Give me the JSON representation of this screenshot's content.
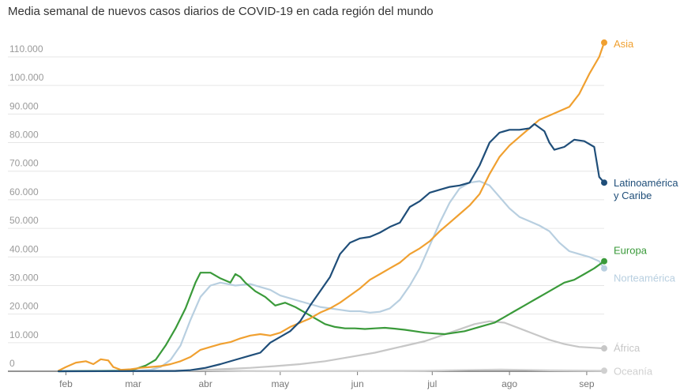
{
  "title": "Media semanal de nuevos casos diarios de COVID-19 en cada región del mundo",
  "chart_data": {
    "type": "line",
    "title": "Media semanal de nuevos casos diarios de COVID-19 en cada región del mundo",
    "xlabel": "",
    "ylabel": "",
    "x_unit": "day of year 2020",
    "xlim": [
      33,
      252
    ],
    "ylim": [
      0,
      115000
    ],
    "y_ticks": [
      0,
      10000,
      20000,
      30000,
      40000,
      50000,
      60000,
      70000,
      80000,
      90000,
      100000,
      110000
    ],
    "y_tick_labels": [
      "0",
      "10.000",
      "20.000",
      "30.000",
      "40.000",
      "50.000",
      "60.000",
      "70.000",
      "80.000",
      "90.000",
      "100.000",
      "110.000"
    ],
    "x_ticks": [
      {
        "label": "feb",
        "day": 36
      },
      {
        "label": "mar",
        "day": 63
      },
      {
        "label": "abr",
        "day": 92
      },
      {
        "label": "may",
        "day": 122
      },
      {
        "label": "jun",
        "day": 153
      },
      {
        "label": "jul",
        "day": 183
      },
      {
        "label": "ago",
        "day": 214
      },
      {
        "label": "sep",
        "day": 245
      }
    ],
    "grid": true,
    "legend": "end-of-line labels",
    "series": [
      {
        "name": "Asia",
        "color": "#f0a030",
        "end_label": [
          "Asia"
        ],
        "points": [
          [
            33,
            200
          ],
          [
            36,
            1500
          ],
          [
            40,
            3000
          ],
          [
            44,
            3500
          ],
          [
            47,
            2500
          ],
          [
            50,
            4200
          ],
          [
            53,
            3800
          ],
          [
            55,
            1500
          ],
          [
            58,
            500
          ],
          [
            62,
            700
          ],
          [
            66,
            1200
          ],
          [
            70,
            1500
          ],
          [
            74,
            1800
          ],
          [
            78,
            2500
          ],
          [
            82,
            3500
          ],
          [
            86,
            5000
          ],
          [
            90,
            7500
          ],
          [
            94,
            8500
          ],
          [
            98,
            9500
          ],
          [
            102,
            10200
          ],
          [
            106,
            11500
          ],
          [
            110,
            12500
          ],
          [
            114,
            13000
          ],
          [
            118,
            12500
          ],
          [
            122,
            13500
          ],
          [
            126,
            15500
          ],
          [
            130,
            17000
          ],
          [
            134,
            18500
          ],
          [
            138,
            20500
          ],
          [
            142,
            22000
          ],
          [
            146,
            24000
          ],
          [
            150,
            26500
          ],
          [
            154,
            29000
          ],
          [
            158,
            32000
          ],
          [
            162,
            34000
          ],
          [
            166,
            36000
          ],
          [
            170,
            38000
          ],
          [
            174,
            41000
          ],
          [
            178,
            43000
          ],
          [
            182,
            45500
          ],
          [
            186,
            49000
          ],
          [
            190,
            52000
          ],
          [
            194,
            55000
          ],
          [
            198,
            58000
          ],
          [
            202,
            62000
          ],
          [
            206,
            69000
          ],
          [
            210,
            75000
          ],
          [
            214,
            79000
          ],
          [
            218,
            82000
          ],
          [
            222,
            85000
          ],
          [
            226,
            88000
          ],
          [
            230,
            89500
          ],
          [
            234,
            91000
          ],
          [
            238,
            92500
          ],
          [
            242,
            97000
          ],
          [
            246,
            104000
          ],
          [
            250,
            110000
          ],
          [
            252,
            115000
          ]
        ]
      },
      {
        "name": "Latinoamérica y Caribe",
        "color": "#1f4e79",
        "end_label": [
          "Latinoamérica",
          "y Caribe"
        ],
        "points": [
          [
            33,
            0
          ],
          [
            80,
            100
          ],
          [
            86,
            400
          ],
          [
            92,
            1200
          ],
          [
            98,
            2500
          ],
          [
            104,
            4000
          ],
          [
            110,
            5500
          ],
          [
            114,
            6500
          ],
          [
            118,
            10000
          ],
          [
            122,
            12000
          ],
          [
            126,
            14000
          ],
          [
            130,
            17500
          ],
          [
            134,
            23000
          ],
          [
            138,
            28000
          ],
          [
            142,
            33000
          ],
          [
            146,
            41000
          ],
          [
            150,
            45000
          ],
          [
            154,
            46500
          ],
          [
            158,
            47000
          ],
          [
            162,
            48500
          ],
          [
            166,
            50500
          ],
          [
            170,
            52000
          ],
          [
            174,
            57500
          ],
          [
            178,
            59500
          ],
          [
            182,
            62500
          ],
          [
            186,
            63500
          ],
          [
            190,
            64500
          ],
          [
            194,
            65000
          ],
          [
            198,
            66000
          ],
          [
            202,
            72000
          ],
          [
            206,
            80000
          ],
          [
            210,
            83500
          ],
          [
            214,
            84500
          ],
          [
            218,
            84500
          ],
          [
            222,
            85000
          ],
          [
            224,
            86500
          ],
          [
            228,
            84000
          ],
          [
            230,
            80000
          ],
          [
            232,
            77500
          ],
          [
            236,
            78500
          ],
          [
            240,
            81000
          ],
          [
            244,
            80500
          ],
          [
            248,
            78500
          ],
          [
            250,
            68000
          ],
          [
            252,
            66000
          ]
        ]
      },
      {
        "name": "Europa",
        "color": "#3a9a3a",
        "end_label": [
          "Europa"
        ],
        "points": [
          [
            33,
            0
          ],
          [
            60,
            200
          ],
          [
            64,
            800
          ],
          [
            68,
            2000
          ],
          [
            72,
            4000
          ],
          [
            76,
            9000
          ],
          [
            80,
            15000
          ],
          [
            84,
            22000
          ],
          [
            88,
            31000
          ],
          [
            90,
            34500
          ],
          [
            94,
            34500
          ],
          [
            98,
            32500
          ],
          [
            102,
            31000
          ],
          [
            104,
            34000
          ],
          [
            106,
            33000
          ],
          [
            108,
            31000
          ],
          [
            112,
            28000
          ],
          [
            116,
            26000
          ],
          [
            120,
            23000
          ],
          [
            124,
            24000
          ],
          [
            128,
            22500
          ],
          [
            132,
            20500
          ],
          [
            136,
            18500
          ],
          [
            140,
            16500
          ],
          [
            144,
            15500
          ],
          [
            148,
            15000
          ],
          [
            152,
            15000
          ],
          [
            156,
            14800
          ],
          [
            160,
            15000
          ],
          [
            164,
            15200
          ],
          [
            168,
            14900
          ],
          [
            172,
            14500
          ],
          [
            176,
            14000
          ],
          [
            180,
            13500
          ],
          [
            184,
            13200
          ],
          [
            188,
            13000
          ],
          [
            192,
            13500
          ],
          [
            196,
            14000
          ],
          [
            200,
            15000
          ],
          [
            204,
            16000
          ],
          [
            208,
            17000
          ],
          [
            212,
            19000
          ],
          [
            216,
            21000
          ],
          [
            220,
            23000
          ],
          [
            224,
            25000
          ],
          [
            228,
            27000
          ],
          [
            232,
            29000
          ],
          [
            236,
            31000
          ],
          [
            240,
            32000
          ],
          [
            244,
            34000
          ],
          [
            248,
            36000
          ],
          [
            252,
            38500
          ]
        ]
      },
      {
        "name": "Norteamérica",
        "color": "#b8cfe0",
        "end_label": [
          "Norteamérica"
        ],
        "points": [
          [
            33,
            0
          ],
          [
            64,
            100
          ],
          [
            70,
            500
          ],
          [
            74,
            1500
          ],
          [
            78,
            4000
          ],
          [
            82,
            9000
          ],
          [
            86,
            18000
          ],
          [
            90,
            26000
          ],
          [
            94,
            30000
          ],
          [
            98,
            31000
          ],
          [
            104,
            30000
          ],
          [
            110,
            30500
          ],
          [
            114,
            29500
          ],
          [
            118,
            28500
          ],
          [
            122,
            26500
          ],
          [
            126,
            25500
          ],
          [
            130,
            24500
          ],
          [
            134,
            23500
          ],
          [
            138,
            22500
          ],
          [
            142,
            22000
          ],
          [
            146,
            21500
          ],
          [
            150,
            21000
          ],
          [
            154,
            21000
          ],
          [
            158,
            20500
          ],
          [
            162,
            20800
          ],
          [
            166,
            22000
          ],
          [
            170,
            25000
          ],
          [
            174,
            30000
          ],
          [
            178,
            36000
          ],
          [
            182,
            44000
          ],
          [
            186,
            52000
          ],
          [
            190,
            59000
          ],
          [
            194,
            64000
          ],
          [
            198,
            66000
          ],
          [
            202,
            66500
          ],
          [
            206,
            65000
          ],
          [
            210,
            61000
          ],
          [
            214,
            57000
          ],
          [
            218,
            54000
          ],
          [
            222,
            52500
          ],
          [
            226,
            51000
          ],
          [
            230,
            49000
          ],
          [
            234,
            45000
          ],
          [
            238,
            42000
          ],
          [
            242,
            41000
          ],
          [
            246,
            40000
          ],
          [
            250,
            38500
          ],
          [
            252,
            36000
          ]
        ]
      },
      {
        "name": "África",
        "color": "#c7c7c7",
        "end_label": [
          "África"
        ],
        "points": [
          [
            33,
            0
          ],
          [
            80,
            100
          ],
          [
            90,
            400
          ],
          [
            100,
            800
          ],
          [
            110,
            1200
          ],
          [
            120,
            1800
          ],
          [
            130,
            2500
          ],
          [
            140,
            3500
          ],
          [
            150,
            5000
          ],
          [
            160,
            6500
          ],
          [
            170,
            8500
          ],
          [
            180,
            10500
          ],
          [
            190,
            13500
          ],
          [
            200,
            16500
          ],
          [
            206,
            17500
          ],
          [
            212,
            17000
          ],
          [
            218,
            15000
          ],
          [
            224,
            13000
          ],
          [
            230,
            11000
          ],
          [
            236,
            9500
          ],
          [
            242,
            8500
          ],
          [
            248,
            8200
          ],
          [
            252,
            8000
          ]
        ]
      },
      {
        "name": "Oceanía",
        "color": "#d0d0d0",
        "end_label": [
          "Oceanía"
        ],
        "points": [
          [
            33,
            0
          ],
          [
            90,
            300
          ],
          [
            120,
            50
          ],
          [
            180,
            200
          ],
          [
            210,
            600
          ],
          [
            230,
            300
          ],
          [
            252,
            200
          ]
        ]
      }
    ]
  }
}
